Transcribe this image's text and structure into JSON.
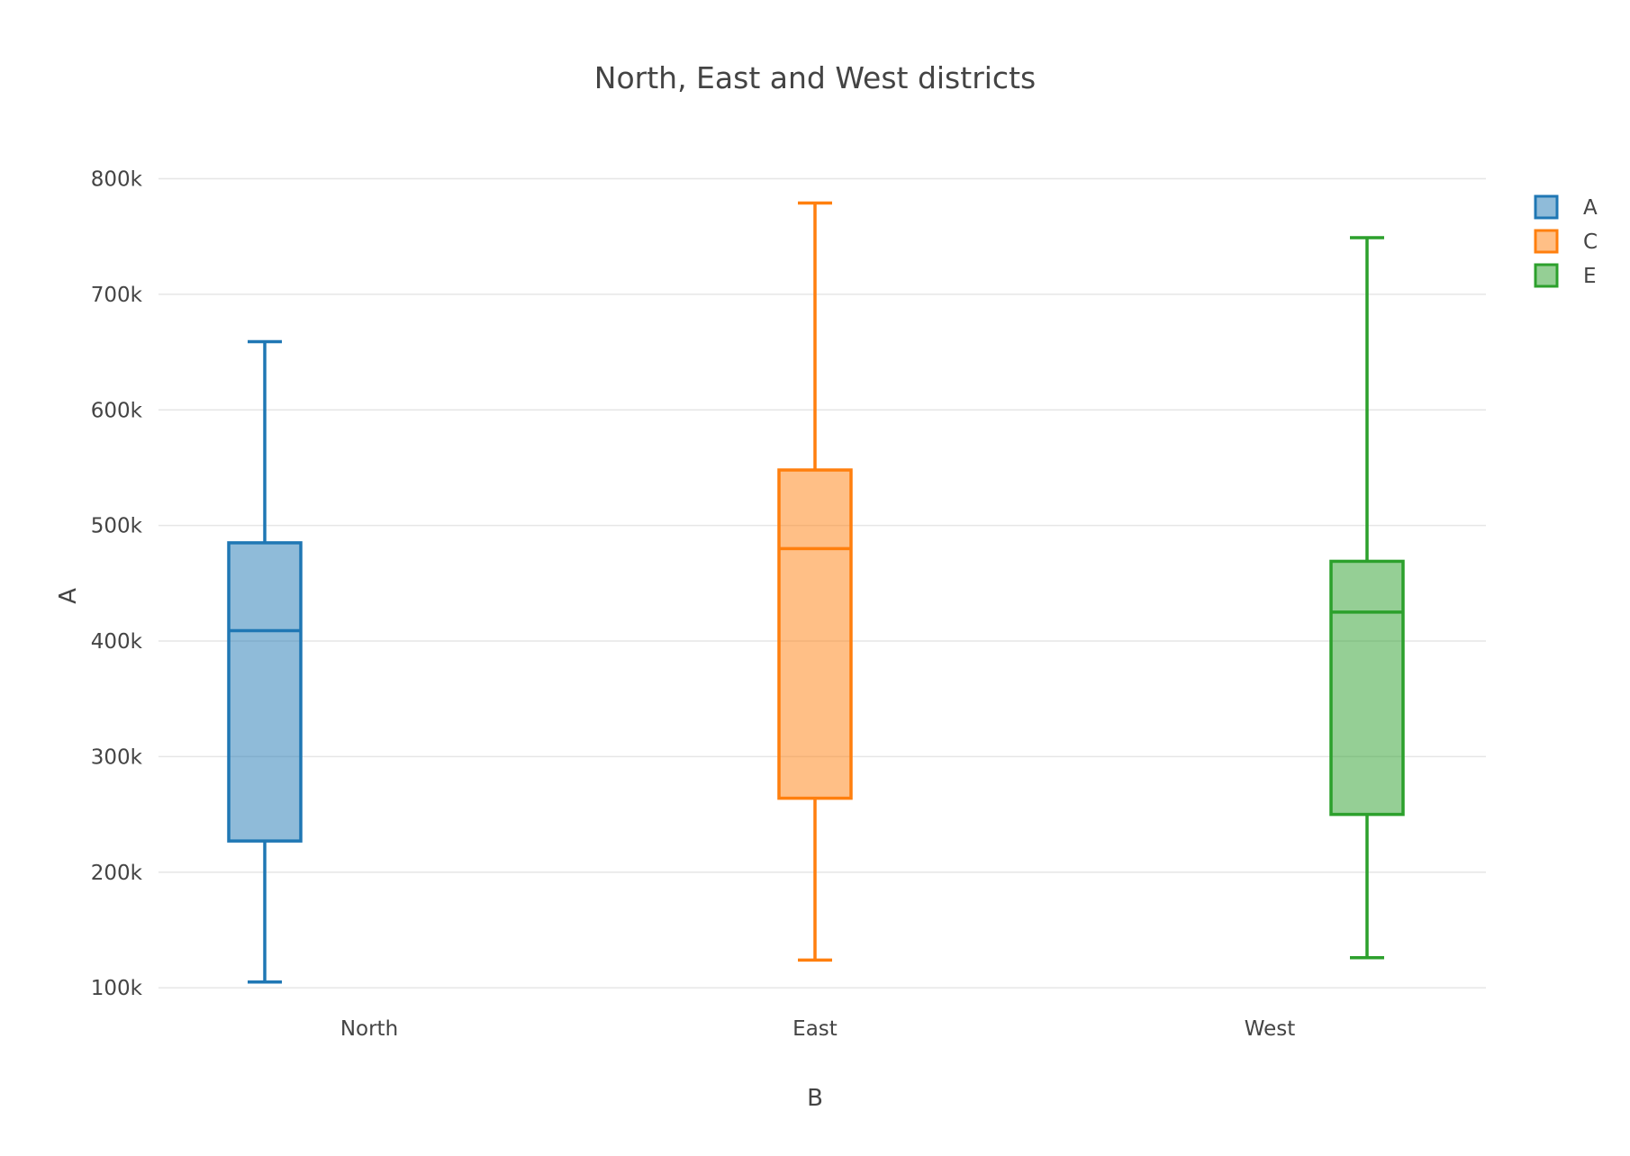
{
  "chart_data": {
    "type": "box",
    "title": "North, East and West districts",
    "xlabel": "B",
    "ylabel": "A",
    "categories": [
      "North",
      "East",
      "West"
    ],
    "ylim": [
      90000,
      830000
    ],
    "yticks": [
      100000,
      200000,
      300000,
      400000,
      500000,
      600000,
      700000,
      800000
    ],
    "ytick_labels": [
      "100k",
      "200k",
      "300k",
      "400k",
      "500k",
      "600k",
      "700k",
      "800k"
    ],
    "grid": true,
    "legend_position": "top-right",
    "series": [
      {
        "name": "A",
        "category": "North",
        "min": 105000,
        "q1": 227000,
        "median": 409000,
        "q3": 485000,
        "max": 659000,
        "color": "#1f77b4",
        "fill": "rgba(31,119,180,0.5)"
      },
      {
        "name": "C",
        "category": "East",
        "min": 124000,
        "q1": 264000,
        "median": 480000,
        "q3": 548000,
        "max": 779000,
        "color": "#ff7f0e",
        "fill": "rgba(255,127,14,0.5)"
      },
      {
        "name": "E",
        "category": "West",
        "min": 126000,
        "q1": 250000,
        "median": 425000,
        "q3": 469000,
        "max": 749000,
        "color": "#2ca02c",
        "fill": "rgba(44,160,44,0.5)"
      }
    ]
  }
}
